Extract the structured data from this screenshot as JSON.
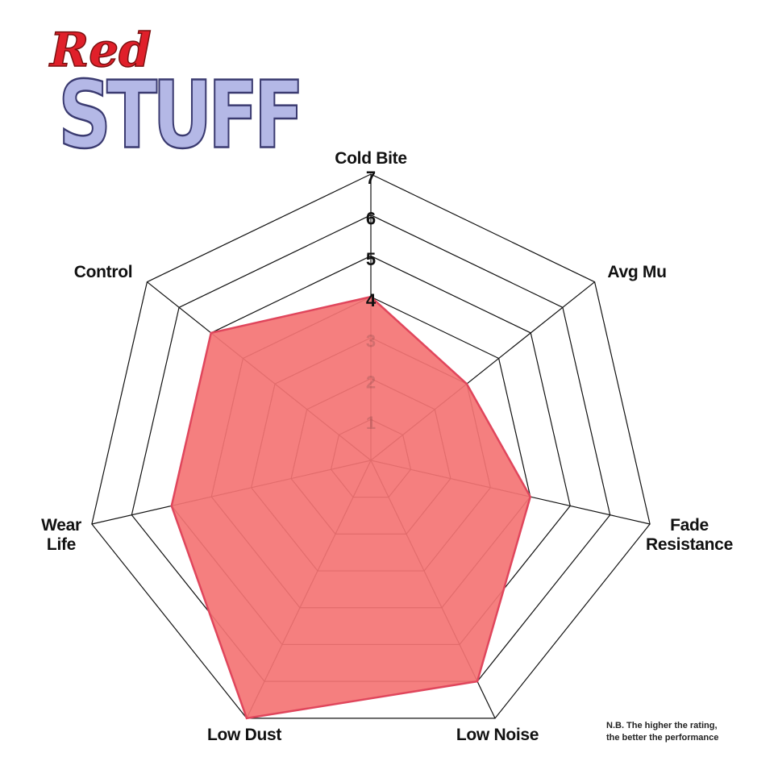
{
  "logo": {
    "line1": "Red",
    "line2": "STUFF"
  },
  "note": [
    "N.B. The higher the rating,",
    "the better the performance"
  ],
  "chart_data": {
    "type": "radar",
    "categories": [
      "Cold Bite",
      "Avg Mu",
      "Fade Resistance",
      "Low Noise",
      "Low Dust",
      "Wear Life",
      "Control"
    ],
    "values": [
      4,
      3,
      4,
      6,
      7,
      5,
      5
    ],
    "color": "#f47474",
    "stroke": "#e0465c",
    "ylim": [
      0,
      7
    ],
    "yticks": [
      1,
      2,
      3,
      4,
      5,
      6,
      7
    ],
    "grid": true
  }
}
